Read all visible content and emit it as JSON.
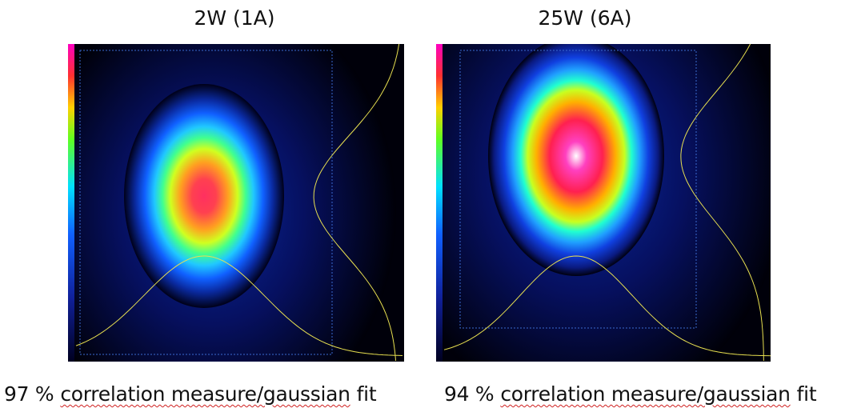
{
  "panels": [
    {
      "title": "2W (1A)",
      "caption": {
        "number": "97 %",
        "underlined": "correlation measure/gaussian",
        "rest": "fit"
      }
    },
    {
      "title": "25W (6A)",
      "caption": {
        "number": "94 %",
        "underlined": "correlation measure/gaussian",
        "rest": "fit"
      }
    }
  ]
}
